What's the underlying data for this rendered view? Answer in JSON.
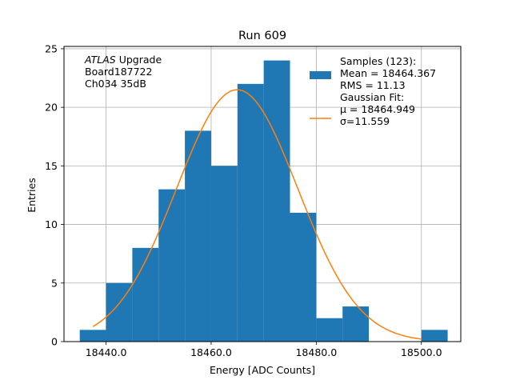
{
  "chart_data": {
    "type": "histogram",
    "title": "Run 609",
    "xlabel": "Energy [ADC Counts]",
    "ylabel": "Entries",
    "xlim": [
      18432.0,
      18507.5
    ],
    "ylim": [
      0,
      25.2
    ],
    "xticks": [
      18440.0,
      18460.0,
      18480.0,
      18500.0
    ],
    "xtick_labels": [
      "18440.0",
      "18460.0",
      "18480.0",
      "18500.0"
    ],
    "yticks": [
      0,
      5,
      10,
      15,
      20,
      25
    ],
    "ytick_labels": [
      "0",
      "5",
      "10",
      "15",
      "20",
      "25"
    ],
    "grid": true,
    "bin_edges": [
      18435,
      18440,
      18445,
      18450,
      18455,
      18460,
      18465,
      18470,
      18475,
      18480,
      18485,
      18490,
      18495,
      18500,
      18505
    ],
    "counts": [
      1,
      5,
      8,
      13,
      18,
      15,
      22,
      24,
      11,
      2,
      3,
      0,
      0,
      1
    ],
    "bar_color": "#1f77b4",
    "fit": {
      "type": "gaussian",
      "mu": 18464.949,
      "sigma": 11.559,
      "amplitude": 21.5,
      "x_range": [
        18437.5,
        18500
      ],
      "color": "#ff7f0e"
    },
    "annotation_lines": [
      "ATLAS Upgrade",
      " Board187722",
      " Ch034 35dB"
    ],
    "annotation_emphasis": "ATLAS",
    "legend": {
      "position": "top-right",
      "entries": [
        {
          "kind": "patch",
          "lines": [
            "Samples (123):",
            " Mean = 18464.367",
            " RMS = 11.13"
          ]
        },
        {
          "kind": "line",
          "lines": [
            "Gaussian Fit:",
            " μ = 18464.949",
            " σ=11.559"
          ]
        }
      ]
    }
  }
}
